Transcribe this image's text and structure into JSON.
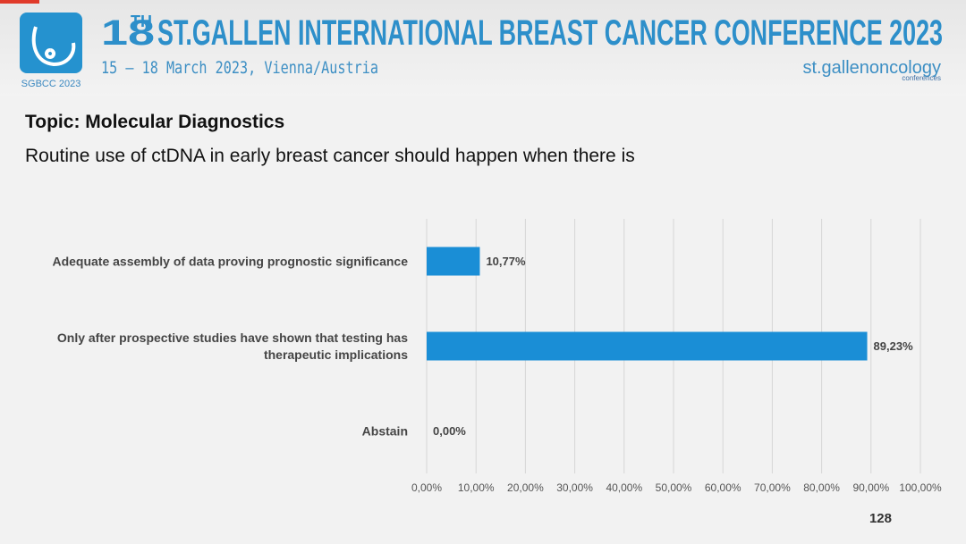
{
  "header": {
    "title_number": "18",
    "title_suffix": "TH",
    "title_rest": "ST.GALLEN INTERNATIONAL BREAST CANCER CONFERENCE 2023",
    "date": "15 – 18 March 2023, Vienna/Austria",
    "logo_text": "SGBCC 2023",
    "brand": "st.gallenoncology",
    "brand_sub": "conferences"
  },
  "topic": "Topic: Molecular Diagnostics",
  "question": "Routine use of ctDNA in early breast cancer should happen when there is",
  "page_number": "128",
  "chart_data": {
    "type": "bar",
    "orientation": "horizontal",
    "categories": [
      "Adequate assembly of data proving prognostic significance",
      "Only after prospective studies have shown that testing has therapeutic implications",
      "Abstain"
    ],
    "values": [
      10.77,
      89.23,
      0
    ],
    "value_labels": [
      "10,77%",
      "89,23%",
      "0,00%"
    ],
    "color": "#1a8ed6",
    "xlim": [
      0,
      100
    ],
    "xticks": [
      {
        "value": 0,
        "label": "0,00%"
      },
      {
        "value": 10,
        "label": "10,00%"
      },
      {
        "value": 20,
        "label": "20,00%"
      },
      {
        "value": 30,
        "label": "30,00%"
      },
      {
        "value": 40,
        "label": "40,00%"
      },
      {
        "value": 50,
        "label": "50,00%"
      },
      {
        "value": 60,
        "label": "60,00%"
      },
      {
        "value": 70,
        "label": "70,00%"
      },
      {
        "value": 80,
        "label": "80,00%"
      },
      {
        "value": 90,
        "label": "90,00%"
      },
      {
        "value": 100,
        "label": "100,00%"
      }
    ],
    "grid": true
  }
}
